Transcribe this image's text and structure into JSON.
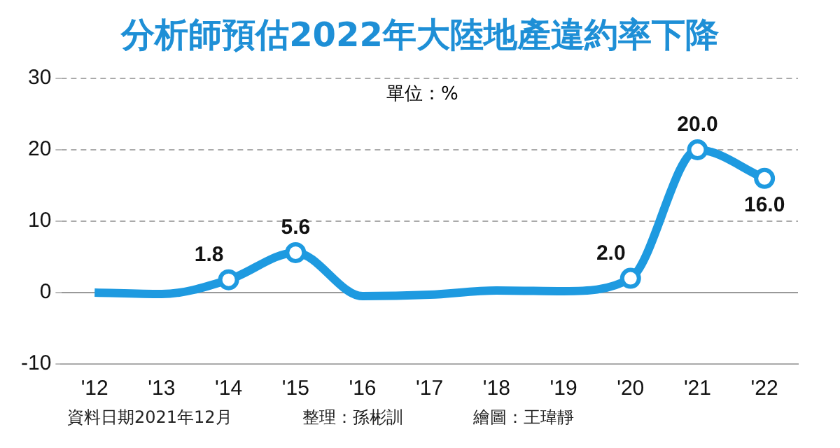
{
  "chart_data": {
    "type": "line",
    "title": "分析師預估2022年大陸地產違約率下降",
    "categories": [
      "'12",
      "'13",
      "'14",
      "'15",
      "'16",
      "'17",
      "'18",
      "'19",
      "'20",
      "'21",
      "'22"
    ],
    "series": [
      {
        "color": "#1e9ae0",
        "values": [
          0,
          -0.2,
          1.8,
          5.6,
          -0.5,
          -0.3,
          0.3,
          0.2,
          2.0,
          20.0,
          16.0
        ],
        "value_labels": [
          null,
          null,
          "1.8",
          "5.6",
          null,
          null,
          null,
          null,
          "2.0",
          "20.0",
          "16.0"
        ]
      }
    ],
    "ylim": [
      -10,
      30
    ],
    "yticks": [
      -10,
      0,
      10,
      20,
      30
    ],
    "grid": "y",
    "legend": false,
    "ref_lines": [
      {
        "axis": "y",
        "value": 0,
        "color": "#999999",
        "line_style": "solid"
      }
    ],
    "annotations": [
      "單位：%",
      "資料日期2021年12月",
      "整理：孫彬訓",
      "繪圖：王瑋靜"
    ]
  }
}
